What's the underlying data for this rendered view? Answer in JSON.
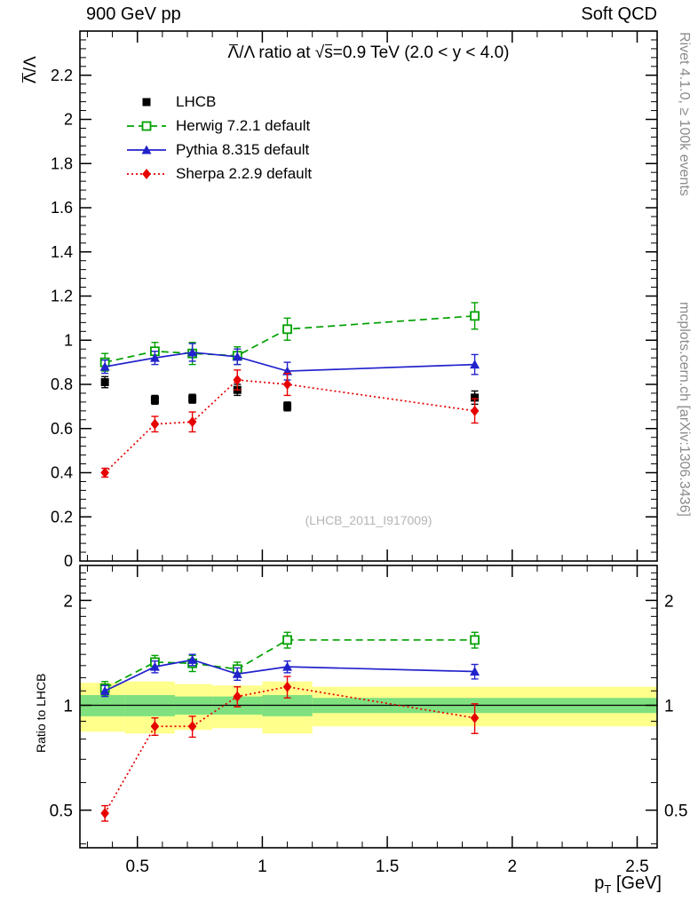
{
  "header": {
    "left": "900 GeV pp",
    "right": "Soft QCD"
  },
  "side_notes": {
    "top": "Rivet 4.1.0, ≥ 100k events",
    "bottom": "mcplots.cern.ch [arXiv:1306.3436]",
    "color": "#8c8c8c"
  },
  "watermark": {
    "text": "(LHCB_2011_I917009)",
    "color": "#b5b5b5"
  },
  "chart_data": {
    "type": "line",
    "title": "Λ̅/Λ ratio at √s̅=0.9 TeV (2.0 < y < 4.0)",
    "title_parts": {
      "lam": "Λ",
      "mid": "/Λ ratio at ",
      "sqrt": "√",
      "s": "s",
      "tail": "=0.9 TeV (2.0 < y < 4.0)"
    },
    "main_panel": {
      "ylabel": "Λ̅/Λ",
      "ylabel_parts": {
        "lam": "Λ",
        "rest": "/Λ"
      },
      "scale": "linear",
      "ylim": [
        0,
        2.4
      ],
      "yticks": [
        0,
        0.2,
        0.4,
        0.6,
        0.8,
        1,
        1.2,
        1.4,
        1.6,
        1.8,
        2,
        2.2
      ],
      "grid": false
    },
    "ratio_panel": {
      "ylabel": "Ratio to LHCB",
      "scale": "log",
      "ylim": [
        0.39,
        2.52
      ],
      "yticks": [
        0.5,
        1,
        2
      ],
      "grid": false
    },
    "xaxis": {
      "label": "p_T [GeV]",
      "label_parts": {
        "base": "p",
        "sub": "T",
        "unit": " [GeV]"
      },
      "lim": [
        0.27,
        2.58
      ],
      "ticks": [
        0.5,
        1,
        1.5,
        2,
        2.5
      ]
    },
    "x": [
      0.37,
      0.57,
      0.72,
      0.9,
      1.1,
      1.85
    ],
    "series": [
      {
        "name": "LHCB",
        "color": "#000000",
        "marker": "square-filled",
        "line": "none",
        "values": [
          0.81,
          0.73,
          0.735,
          0.775,
          0.7,
          0.74
        ],
        "errors": [
          0.025,
          0.02,
          0.02,
          0.025,
          0.02,
          0.03
        ]
      },
      {
        "name": "Herwig 7.2.1 default",
        "color": "#00a000",
        "marker": "square-open",
        "line": "dashed",
        "values": [
          0.9,
          0.95,
          0.94,
          0.93,
          1.05,
          1.11
        ],
        "errors": [
          0.04,
          0.04,
          0.05,
          0.04,
          0.05,
          0.06
        ]
      },
      {
        "name": "Pythia 8.315 default",
        "color": "#2222cc",
        "marker": "triangle-filled",
        "line": "solid",
        "values": [
          0.88,
          0.92,
          0.945,
          0.925,
          0.86,
          0.89
        ],
        "errors": [
          0.03,
          0.03,
          0.04,
          0.035,
          0.04,
          0.045
        ]
      },
      {
        "name": "Sherpa 2.2.9 default",
        "color": "#e60000",
        "marker": "diamond-filled",
        "line": "dotted",
        "values": [
          0.4,
          0.62,
          0.63,
          0.82,
          0.8,
          0.68
        ],
        "errors": [
          0.02,
          0.035,
          0.045,
          0.045,
          0.05,
          0.055
        ]
      }
    ],
    "ratio_series": [
      {
        "name": "Herwig 7.2.1 default",
        "color": "#00a000",
        "marker": "square-open",
        "line": "dashed",
        "values": [
          1.12,
          1.33,
          1.32,
          1.27,
          1.54,
          1.54
        ],
        "errors": [
          0.05,
          0.06,
          0.07,
          0.06,
          0.08,
          0.08
        ]
      },
      {
        "name": "Pythia 8.315 default",
        "color": "#2222cc",
        "marker": "triangle-filled",
        "line": "solid",
        "values": [
          1.1,
          1.29,
          1.35,
          1.23,
          1.29,
          1.25
        ],
        "errors": [
          0.04,
          0.05,
          0.05,
          0.05,
          0.05,
          0.06
        ]
      },
      {
        "name": "Sherpa 2.2.9 default",
        "color": "#e60000",
        "marker": "diamond-filled",
        "line": "dotted",
        "values": [
          0.49,
          0.87,
          0.87,
          1.06,
          1.13,
          0.92
        ],
        "errors": [
          0.025,
          0.05,
          0.06,
          0.07,
          0.08,
          0.09
        ]
      }
    ],
    "bands": {
      "bin_edges": [
        0.27,
        0.45,
        0.65,
        0.8,
        1.0,
        1.2,
        2.58
      ],
      "yellow": {
        "color": "#ffff8c",
        "lo": [
          0.84,
          0.83,
          0.85,
          0.86,
          0.83,
          0.87
        ],
        "hi": [
          1.16,
          1.17,
          1.15,
          1.14,
          1.17,
          1.13
        ]
      },
      "green": {
        "color": "#7fe07f",
        "lo": [
          0.93,
          0.93,
          0.94,
          0.94,
          0.93,
          0.95
        ],
        "hi": [
          1.07,
          1.07,
          1.06,
          1.06,
          1.07,
          1.05
        ]
      },
      "reference_line": 1
    }
  }
}
